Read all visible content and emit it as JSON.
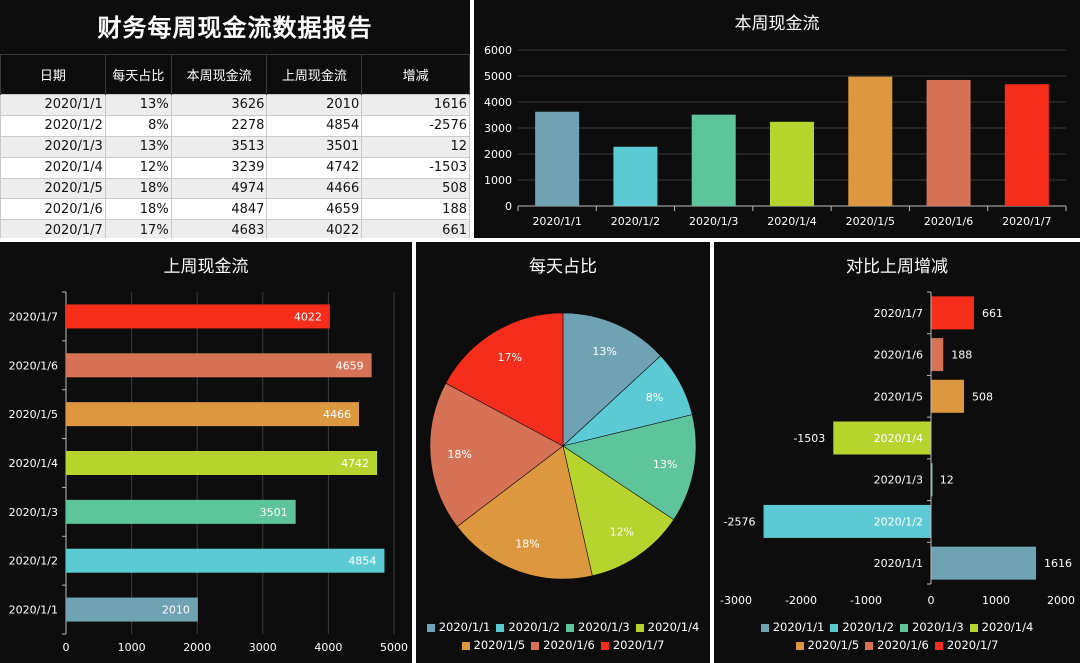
{
  "report": {
    "title": "财务每周现金流数据报告",
    "headers": [
      "日期",
      "每天占比",
      "本周现金流",
      "上周现金流",
      "增减"
    ],
    "rows": [
      [
        "2020/1/1",
        "13%",
        "3626",
        "2010",
        "1616"
      ],
      [
        "2020/1/2",
        "8%",
        "2278",
        "4854",
        "-2576"
      ],
      [
        "2020/1/3",
        "13%",
        "3513",
        "3501",
        "12"
      ],
      [
        "2020/1/4",
        "12%",
        "3239",
        "4742",
        "-1503"
      ],
      [
        "2020/1/5",
        "18%",
        "4974",
        "4466",
        "508"
      ],
      [
        "2020/1/6",
        "18%",
        "4847",
        "4659",
        "188"
      ],
      [
        "2020/1/7",
        "17%",
        "4683",
        "4022",
        "661"
      ]
    ]
  },
  "colors": [
    "#6fa3b4",
    "#5ccad2",
    "#5ec49c",
    "#b6d32e",
    "#dd973f",
    "#d67357",
    "#f52d1a"
  ],
  "chart_data": [
    {
      "type": "bar",
      "title": "本周现金流",
      "categories": [
        "2020/1/1",
        "2020/1/2",
        "2020/1/3",
        "2020/1/4",
        "2020/1/5",
        "2020/1/6",
        "2020/1/7"
      ],
      "values": [
        3626,
        2278,
        3513,
        3239,
        4974,
        4847,
        4683
      ],
      "ylim": [
        0,
        6000
      ],
      "yticks": [
        0,
        1000,
        2000,
        3000,
        4000,
        5000,
        6000
      ],
      "grid": true
    },
    {
      "type": "bar",
      "orientation": "horizontal",
      "title": "上周现金流",
      "categories": [
        "2020/1/1",
        "2020/1/2",
        "2020/1/3",
        "2020/1/4",
        "2020/1/5",
        "2020/1/6",
        "2020/1/7"
      ],
      "values": [
        2010,
        4854,
        3501,
        4742,
        4466,
        4659,
        4022
      ],
      "xlim": [
        0,
        5000
      ],
      "xticks": [
        0,
        1000,
        2000,
        3000,
        4000,
        5000
      ],
      "grid": true
    },
    {
      "type": "pie",
      "title": "每天占比",
      "categories": [
        "2020/1/1",
        "2020/1/2",
        "2020/1/3",
        "2020/1/4",
        "2020/1/5",
        "2020/1/6",
        "2020/1/7"
      ],
      "values": [
        13,
        8,
        13,
        12,
        18,
        18,
        17
      ],
      "labels": [
        "13%",
        "8%",
        "13%",
        "12%",
        "18%",
        "18%",
        "17%"
      ],
      "legend": "bottom"
    },
    {
      "type": "bar",
      "orientation": "horizontal",
      "title": "对比上周增减",
      "categories": [
        "2020/1/1",
        "2020/1/2",
        "2020/1/3",
        "2020/1/4",
        "2020/1/5",
        "2020/1/6",
        "2020/1/7"
      ],
      "values": [
        1616,
        -2576,
        12,
        -1503,
        508,
        188,
        661
      ],
      "xlim": [
        -3000,
        2000
      ],
      "xticks": [
        -3000,
        -2000,
        -1000,
        0,
        1000,
        2000
      ],
      "legend": "bottom"
    }
  ]
}
